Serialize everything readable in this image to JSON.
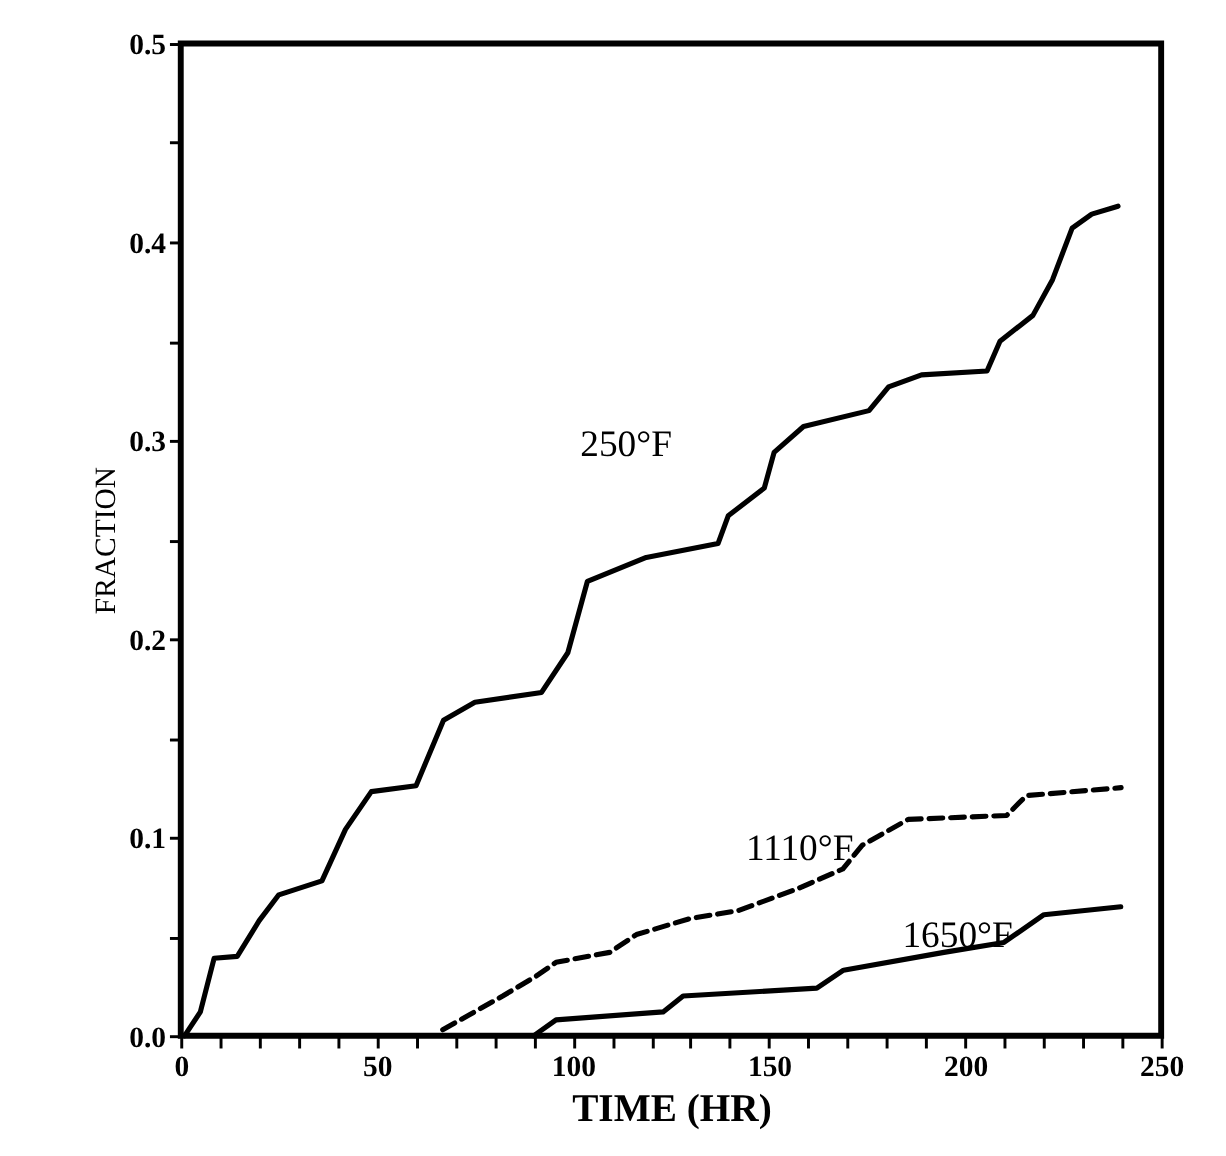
{
  "chart_data": {
    "type": "line",
    "xlabel": "TIME (HR)",
    "ylabel": "FRACTION",
    "xlim": [
      0,
      250
    ],
    "ylim": [
      0,
      0.5
    ],
    "xticks": [
      {
        "value": 0,
        "label": "0"
      },
      {
        "value": 10,
        "label": null
      },
      {
        "value": 20,
        "label": null
      },
      {
        "value": 30,
        "label": null
      },
      {
        "value": 40,
        "label": null
      },
      {
        "value": 50,
        "label": "50"
      },
      {
        "value": 60,
        "label": null
      },
      {
        "value": 70,
        "label": null
      },
      {
        "value": 80,
        "label": null
      },
      {
        "value": 90,
        "label": null
      },
      {
        "value": 100,
        "label": "100"
      },
      {
        "value": 110,
        "label": null
      },
      {
        "value": 120,
        "label": null
      },
      {
        "value": 130,
        "label": null
      },
      {
        "value": 140,
        "label": null
      },
      {
        "value": 150,
        "label": "150"
      },
      {
        "value": 160,
        "label": null
      },
      {
        "value": 170,
        "label": null
      },
      {
        "value": 180,
        "label": null
      },
      {
        "value": 190,
        "label": null
      },
      {
        "value": 200,
        "label": "200"
      },
      {
        "value": 210,
        "label": null
      },
      {
        "value": 220,
        "label": null
      },
      {
        "value": 230,
        "label": null
      },
      {
        "value": 240,
        "label": null
      },
      {
        "value": 250,
        "label": "250"
      }
    ],
    "yticks": [
      {
        "value": 0,
        "label": "0.0"
      },
      {
        "value": 0.05,
        "label": null
      },
      {
        "value": 0.1,
        "label": "0.1"
      },
      {
        "value": 0.15,
        "label": null
      },
      {
        "value": 0.2,
        "label": "0.2"
      },
      {
        "value": 0.25,
        "label": null
      },
      {
        "value": 0.3,
        "label": "0.3"
      },
      {
        "value": 0.35,
        "label": null
      },
      {
        "value": 0.4,
        "label": "0.4"
      },
      {
        "value": 0.45,
        "label": null
      },
      {
        "value": 0.5,
        "label": "0.5"
      }
    ],
    "grid": false,
    "marker": "none",
    "series": [
      {
        "name": "250°F",
        "color": "#000000",
        "line_style": "solid",
        "x": [
          1,
          5,
          8.5,
          14.4,
          20,
          25,
          36,
          42,
          48.6,
          60,
          67,
          75,
          92,
          98.7,
          103.7,
          118.7,
          137,
          139.6,
          148.8,
          151.3,
          158.8,
          175.5,
          180.5,
          188.9,
          205.6,
          208.9,
          217.3,
          222.3,
          227.3,
          232.3,
          239
        ],
        "values": [
          0,
          0.012,
          0.039,
          0.04,
          0.058,
          0.071,
          0.078,
          0.104,
          0.123,
          0.126,
          0.159,
          0.168,
          0.173,
          0.193,
          0.229,
          0.241,
          0.248,
          0.262,
          0.276,
          0.294,
          0.307,
          0.315,
          0.327,
          0.333,
          0.335,
          0.35,
          0.363,
          0.381,
          0.407,
          0.414,
          0.418
        ]
      },
      {
        "name": "1110°F",
        "color": "#000000",
        "line_style": "dashed",
        "x": [
          66.8,
          82.1,
          90.6,
          95.7,
          109.4,
          116.2,
          129.8,
          142.1,
          157.2,
          168.8,
          173.8,
          185.5,
          210.6,
          215.6,
          239.8
        ],
        "values": [
          0.003,
          0.02,
          0.03,
          0.037,
          0.042,
          0.051,
          0.059,
          0.063,
          0.074,
          0.084,
          0.096,
          0.109,
          0.111,
          0.121,
          0.125
        ]
      },
      {
        "name": "1650°F",
        "color": "#000000",
        "line_style": "solid",
        "x": [
          90,
          95.7,
          123,
          128.1,
          162.2,
          169,
          194.6,
          209.9,
          220.1,
          239.7
        ],
        "values": [
          0,
          0.008,
          0.012,
          0.02,
          0.024,
          0.033,
          0.042,
          0.047,
          0.061,
          0.065
        ]
      }
    ]
  }
}
